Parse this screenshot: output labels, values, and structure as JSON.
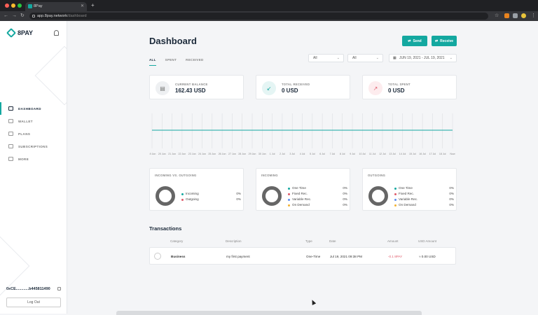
{
  "browser": {
    "tab_title": "8Pay",
    "url_host": "app.8pay.network",
    "url_path": "/dashboard",
    "new_tab": "+",
    "back": "←",
    "forward": "→",
    "reload": "↻",
    "star": "☆"
  },
  "sidebar": {
    "logo_text": "8PAY",
    "items": [
      {
        "label": "DASHBOARD",
        "icon": "bar-chart-icon"
      },
      {
        "label": "WALLET",
        "icon": "wallet-icon"
      },
      {
        "label": "PLANS",
        "icon": "trend-icon"
      },
      {
        "label": "SUBSCRIPTIONS",
        "icon": "subscription-icon"
      },
      {
        "label": "MORE",
        "icon": "grid-icon"
      }
    ],
    "wallet_address": "0xCE............b445811490",
    "logout_label": "Log Out"
  },
  "header": {
    "title": "Dashboard",
    "send_label": "Send",
    "receive_label": "Receive"
  },
  "tabs": [
    "ALL",
    "SPENT",
    "RECEIVED"
  ],
  "filters": {
    "filter1": "All",
    "filter2": "All",
    "date_range": "JUN 19, 2021 - JUL 19, 2021"
  },
  "stats": [
    {
      "label": "CURRENT BALANCE",
      "value": "162.43 USD"
    },
    {
      "label": "TOTAL RECEIVED",
      "value": "0 USD"
    },
    {
      "label": "TOTAL SPENT",
      "value": "0 USD"
    }
  ],
  "colors": {
    "accent": "#14a8a0",
    "incoming": "#14a8a0",
    "outgoing": "#e05a6a",
    "variable": "#5b8def",
    "on_demand": "#f2b233"
  },
  "chart_data": {
    "type": "line",
    "x": [
      "19 Jun",
      "20 Jun",
      "21 Jun",
      "22 Jun",
      "23 Jun",
      "24 Jun",
      "25 Jun",
      "26 Jun",
      "27 Jun",
      "28 Jun",
      "29 Jun",
      "30 Jun",
      "1 Jul",
      "2 Jul",
      "3 Jul",
      "4 Jul",
      "5 Jul",
      "6 Jul",
      "7 Jul",
      "8 Jul",
      "9 Jul",
      "10 Jul",
      "11 Jul",
      "12 Jul",
      "13 Jul",
      "14 Jul",
      "15 Jul",
      "16 Jul",
      "17 Jul",
      "18 Jul",
      "Now"
    ],
    "series": [
      {
        "values": [
          0,
          0,
          0,
          0,
          0,
          0,
          0,
          0,
          0,
          0,
          0,
          0,
          0,
          0,
          0,
          0,
          0,
          0,
          0,
          0,
          0,
          0,
          0,
          0,
          0,
          0,
          0,
          0,
          0,
          0,
          0
        ]
      }
    ],
    "grid": true
  },
  "breakdowns": [
    {
      "title": "INCOMING VS. OUTGOING",
      "items": [
        {
          "label": "Incoming",
          "value": "0%",
          "color": "#14a8a0"
        },
        {
          "label": "Outgoing",
          "value": "0%",
          "color": "#e05a6a"
        }
      ]
    },
    {
      "title": "INCOMING",
      "items": [
        {
          "label": "One Time",
          "value": "0%",
          "color": "#14a8a0"
        },
        {
          "label": "Fixed Rec.",
          "value": "0%",
          "color": "#e05a6a"
        },
        {
          "label": "Variable Rec.",
          "value": "0%",
          "color": "#5b8def"
        },
        {
          "label": "On Demand",
          "value": "0%",
          "color": "#f2b233"
        }
      ]
    },
    {
      "title": "OUTGOING",
      "items": [
        {
          "label": "One Time",
          "value": "0%",
          "color": "#14a8a0"
        },
        {
          "label": "Fixed Rec.",
          "value": "0%",
          "color": "#e05a6a"
        },
        {
          "label": "Variable Rec.",
          "value": "0%",
          "color": "#5b8def"
        },
        {
          "label": "On Demand",
          "value": "0%",
          "color": "#f2b233"
        }
      ]
    }
  ],
  "transactions": {
    "title": "Transactions",
    "columns": [
      "Category",
      "Description",
      "Type",
      "Date",
      "Amount",
      "USD Amount"
    ],
    "rows": [
      {
        "category": "Business",
        "description": "my first payment",
        "type": "One-Time",
        "date": "Jul 19, 2021 09:38 PM",
        "amount": "-0.1 8PAY",
        "usd": "≈ 0.00 USD"
      }
    ]
  }
}
